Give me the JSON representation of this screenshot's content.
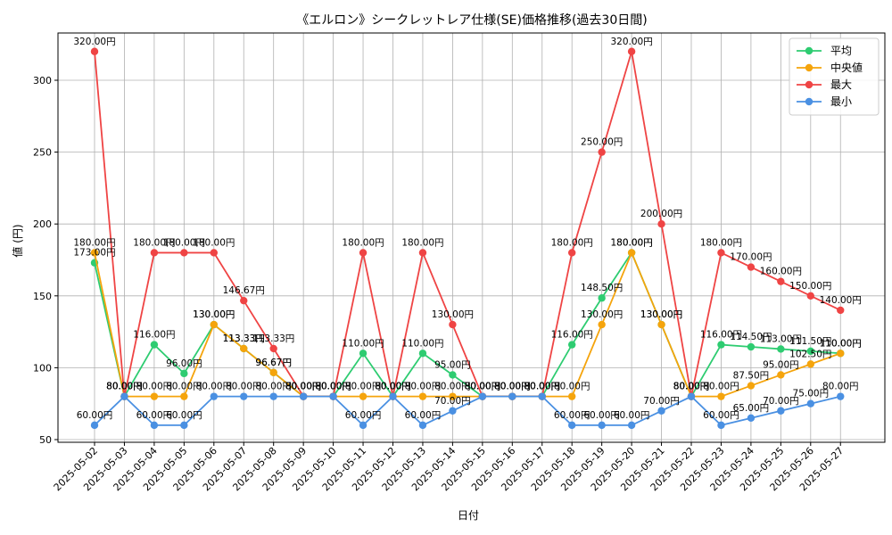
{
  "chart_data": {
    "type": "line",
    "title": "《エルロン》シークレットレア仕様(SE)価格推移(過去30日間)",
    "xlabel": "日付",
    "ylabel": "値 (円)",
    "ylim": [
      50,
      330
    ],
    "yticks": [
      50,
      100,
      150,
      200,
      250,
      300
    ],
    "grid": true,
    "legend_position": "top-right",
    "value_suffix": "円",
    "categories": [
      "2025-05-02",
      "2025-05-03",
      "2025-05-04",
      "2025-05-05",
      "2025-05-06",
      "2025-05-07",
      "2025-05-08",
      "2025-05-09",
      "2025-05-10",
      "2025-05-11",
      "2025-05-12",
      "2025-05-13",
      "2025-05-14",
      "2025-05-15",
      "2025-05-16",
      "2025-05-17",
      "2025-05-18",
      "2025-05-19",
      "2025-05-20",
      "2025-05-21",
      "2025-05-22",
      "2025-05-23",
      "2025-05-24",
      "2025-05-25",
      "2025-05-26",
      "2025-05-27"
    ],
    "series": [
      {
        "name": "平均",
        "color": "#2ecc71",
        "values": [
          173.0,
          80.0,
          116.0,
          96.0,
          130.0,
          113.33,
          96.67,
          80.0,
          80.0,
          110.0,
          80.0,
          110.0,
          95.0,
          80.0,
          80.0,
          80.0,
          116.0,
          148.5,
          180.0,
          130.0,
          80.0,
          116.0,
          114.5,
          113.0,
          111.5,
          110.0
        ]
      },
      {
        "name": "中央値",
        "color": "#f5a40c",
        "values": [
          180.0,
          80.0,
          80.0,
          80.0,
          130.0,
          113.33,
          96.67,
          80.0,
          80.0,
          80.0,
          80.0,
          80.0,
          80.0,
          80.0,
          80.0,
          80.0,
          80.0,
          130.0,
          180.0,
          130.0,
          80.0,
          80.0,
          87.5,
          95.0,
          102.5,
          110.0
        ]
      },
      {
        "name": "最大",
        "color": "#ef4444",
        "values": [
          320.0,
          80.0,
          180.0,
          180.0,
          180.0,
          146.67,
          113.33,
          80.0,
          80.0,
          180.0,
          80.0,
          180.0,
          130.0,
          80.0,
          80.0,
          80.0,
          180.0,
          250.0,
          320.0,
          200.0,
          80.0,
          180.0,
          170.0,
          160.0,
          150.0,
          140.0
        ]
      },
      {
        "name": "最小",
        "color": "#4a90e2",
        "values": [
          60.0,
          80.0,
          60.0,
          60.0,
          80.0,
          80.0,
          80.0,
          80.0,
          80.0,
          60.0,
          80.0,
          60.0,
          70.0,
          80.0,
          80.0,
          80.0,
          60.0,
          60.0,
          60.0,
          70.0,
          80.0,
          60.0,
          65.0,
          70.0,
          75.0,
          80.0
        ]
      }
    ]
  }
}
